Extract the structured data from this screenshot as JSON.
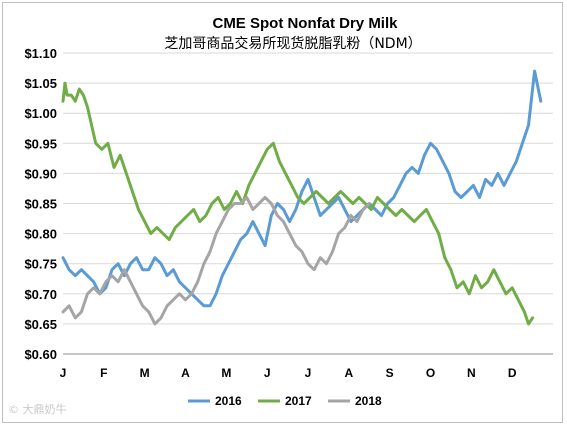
{
  "chart_data": {
    "type": "line",
    "title": "CME Spot Nonfat Dry Milk",
    "subtitle": "芝加哥商品交易所现货脱脂乳粉（NDM）",
    "xlabel": "",
    "ylabel": "",
    "ylim": [
      0.6,
      1.1
    ],
    "yticks": [
      "$0.60",
      "$0.65",
      "$0.70",
      "$0.75",
      "$0.80",
      "$0.85",
      "$0.90",
      "$0.95",
      "$1.00",
      "$1.05",
      "$1.10"
    ],
    "categories": [
      "J",
      "F",
      "M",
      "A",
      "M",
      "J",
      "J",
      "A",
      "S",
      "O",
      "N",
      "D"
    ],
    "xlim": [
      0,
      12
    ],
    "grid": true,
    "legend": "bottom",
    "series": [
      {
        "name": "2016",
        "color": "#5b9bd5",
        "x": [
          0.0,
          0.15,
          0.3,
          0.45,
          0.6,
          0.75,
          0.9,
          1.05,
          1.2,
          1.35,
          1.5,
          1.65,
          1.8,
          1.95,
          2.1,
          2.25,
          2.4,
          2.55,
          2.7,
          2.85,
          3.0,
          3.15,
          3.3,
          3.45,
          3.6,
          3.75,
          3.9,
          4.05,
          4.2,
          4.35,
          4.5,
          4.65,
          4.8,
          4.95,
          5.1,
          5.25,
          5.4,
          5.55,
          5.7,
          5.85,
          6.0,
          6.15,
          6.3,
          6.45,
          6.6,
          6.75,
          6.9,
          7.05,
          7.2,
          7.35,
          7.5,
          7.65,
          7.8,
          7.95,
          8.1,
          8.25,
          8.4,
          8.55,
          8.7,
          8.85,
          9.0,
          9.15,
          9.3,
          9.45,
          9.6,
          9.75,
          9.9,
          10.05,
          10.2,
          10.35,
          10.5,
          10.65,
          10.8,
          10.95,
          11.1,
          11.25,
          11.4,
          11.55,
          11.7
        ],
        "values": [
          0.76,
          0.74,
          0.73,
          0.74,
          0.73,
          0.72,
          0.7,
          0.71,
          0.74,
          0.75,
          0.73,
          0.75,
          0.76,
          0.74,
          0.74,
          0.76,
          0.75,
          0.73,
          0.74,
          0.72,
          0.71,
          0.7,
          0.69,
          0.68,
          0.68,
          0.7,
          0.73,
          0.75,
          0.77,
          0.79,
          0.8,
          0.82,
          0.8,
          0.78,
          0.83,
          0.85,
          0.84,
          0.82,
          0.84,
          0.87,
          0.89,
          0.86,
          0.83,
          0.84,
          0.85,
          0.86,
          0.84,
          0.82,
          0.83,
          0.84,
          0.85,
          0.84,
          0.83,
          0.85,
          0.86,
          0.88,
          0.9,
          0.91,
          0.9,
          0.93,
          0.95,
          0.94,
          0.92,
          0.9,
          0.87,
          0.86,
          0.87,
          0.88,
          0.86,
          0.89,
          0.88,
          0.9,
          0.88,
          0.9,
          0.92,
          0.95,
          0.98,
          1.07,
          1.02
        ]
      },
      {
        "name": "2017",
        "color": "#70ad47",
        "x": [
          0.0,
          0.05,
          0.1,
          0.2,
          0.3,
          0.4,
          0.5,
          0.6,
          0.7,
          0.8,
          0.95,
          1.1,
          1.25,
          1.4,
          1.55,
          1.7,
          1.85,
          2.0,
          2.15,
          2.3,
          2.45,
          2.6,
          2.75,
          2.9,
          3.05,
          3.2,
          3.35,
          3.5,
          3.65,
          3.8,
          3.95,
          4.1,
          4.25,
          4.4,
          4.55,
          4.7,
          4.85,
          5.0,
          5.15,
          5.3,
          5.45,
          5.6,
          5.75,
          5.9,
          6.05,
          6.2,
          6.35,
          6.5,
          6.65,
          6.8,
          6.95,
          7.1,
          7.25,
          7.4,
          7.55,
          7.7,
          7.85,
          8.0,
          8.15,
          8.3,
          8.45,
          8.6,
          8.75,
          8.9,
          9.05,
          9.2,
          9.35,
          9.5,
          9.65,
          9.8,
          9.95,
          10.1,
          10.25,
          10.4,
          10.55,
          10.7,
          10.85,
          11.0,
          11.15,
          11.3,
          11.4,
          11.5
        ],
        "values": [
          1.02,
          1.05,
          1.03,
          1.03,
          1.02,
          1.04,
          1.03,
          1.01,
          0.98,
          0.95,
          0.94,
          0.95,
          0.91,
          0.93,
          0.9,
          0.87,
          0.84,
          0.82,
          0.8,
          0.81,
          0.8,
          0.79,
          0.81,
          0.82,
          0.83,
          0.84,
          0.82,
          0.83,
          0.85,
          0.86,
          0.84,
          0.85,
          0.87,
          0.85,
          0.88,
          0.9,
          0.92,
          0.94,
          0.95,
          0.92,
          0.9,
          0.88,
          0.86,
          0.85,
          0.86,
          0.87,
          0.86,
          0.85,
          0.86,
          0.87,
          0.86,
          0.85,
          0.86,
          0.85,
          0.84,
          0.86,
          0.85,
          0.84,
          0.83,
          0.84,
          0.83,
          0.82,
          0.83,
          0.84,
          0.82,
          0.8,
          0.76,
          0.74,
          0.71,
          0.72,
          0.7,
          0.73,
          0.71,
          0.72,
          0.74,
          0.72,
          0.7,
          0.71,
          0.69,
          0.67,
          0.65,
          0.66
        ]
      },
      {
        "name": "2018",
        "color": "#a5a5a5",
        "x": [
          0.0,
          0.15,
          0.3,
          0.45,
          0.6,
          0.75,
          0.9,
          1.05,
          1.2,
          1.35,
          1.5,
          1.65,
          1.8,
          1.95,
          2.1,
          2.25,
          2.4,
          2.55,
          2.7,
          2.85,
          3.0,
          3.15,
          3.3,
          3.45,
          3.6,
          3.75,
          3.9,
          4.05,
          4.2,
          4.35,
          4.5,
          4.65,
          4.8,
          4.95,
          5.1,
          5.25,
          5.4,
          5.55,
          5.7,
          5.85,
          6.0,
          6.15,
          6.3,
          6.45,
          6.6,
          6.75,
          6.9,
          7.05,
          7.2,
          7.35,
          7.5
        ],
        "values": [
          0.67,
          0.68,
          0.66,
          0.67,
          0.7,
          0.71,
          0.7,
          0.72,
          0.73,
          0.72,
          0.74,
          0.72,
          0.7,
          0.68,
          0.67,
          0.65,
          0.66,
          0.68,
          0.69,
          0.7,
          0.69,
          0.7,
          0.72,
          0.75,
          0.77,
          0.8,
          0.82,
          0.84,
          0.85,
          0.85,
          0.86,
          0.84,
          0.85,
          0.86,
          0.85,
          0.83,
          0.82,
          0.8,
          0.78,
          0.77,
          0.75,
          0.74,
          0.76,
          0.75,
          0.77,
          0.8,
          0.81,
          0.83,
          0.82,
          0.84,
          0.85
        ]
      }
    ]
  },
  "watermark": "© 大鼎奶牛"
}
